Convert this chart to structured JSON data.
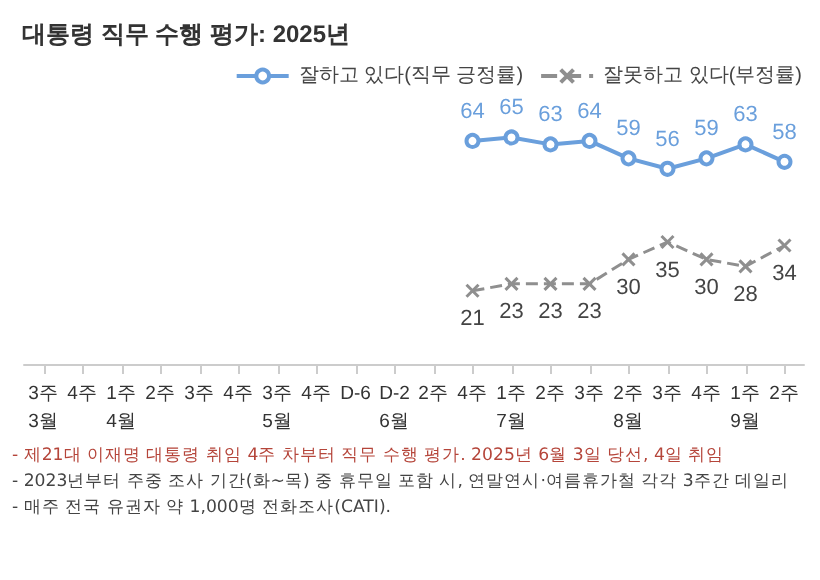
{
  "chart_data": {
    "type": "line",
    "title": "대통령 직무 수행 평가: 2025년",
    "categories": [
      "3주\n3월",
      "4주",
      "1주\n4월",
      "2주",
      "3주",
      "4주",
      "3주\n5월",
      "4주",
      "D-6",
      "D-2\n6월",
      "2주",
      "4주",
      "1주\n7월",
      "2주",
      "3주",
      "2주\n8월",
      "3주",
      "4주",
      "1주\n9월",
      "2주"
    ],
    "series": [
      {
        "name": "잘하고 있다(직무 긍정률)",
        "color": "#6a9fdc",
        "marker": "circle",
        "line_style": "solid",
        "values": [
          null,
          null,
          null,
          null,
          null,
          null,
          null,
          null,
          null,
          null,
          null,
          64,
          65,
          63,
          64,
          59,
          56,
          59,
          63,
          58
        ]
      },
      {
        "name": "잘못하고 있다(부정률)",
        "color": "#8f8f8f",
        "marker": "cross",
        "line_style": "dashed",
        "values": [
          null,
          null,
          null,
          null,
          null,
          null,
          null,
          null,
          null,
          null,
          null,
          21,
          23,
          23,
          23,
          30,
          35,
          30,
          28,
          34
        ]
      }
    ],
    "data_labels": true,
    "legend": "top right",
    "grid": false,
    "annotations": [
      "- 제21대 이재명 대통령 취임 4주 차부터 직무 수행 평가. 2025년 6월 3일 당선, 4일 취임",
      "- 2023년부터 주중 조사 기간(화~목) 중 휴무일 포함 시, 연말연시·여름휴가철 각각 3주간 데일리",
      "- 매주 전국 유권자 약 1,000명 전화조사(CATI)."
    ]
  }
}
